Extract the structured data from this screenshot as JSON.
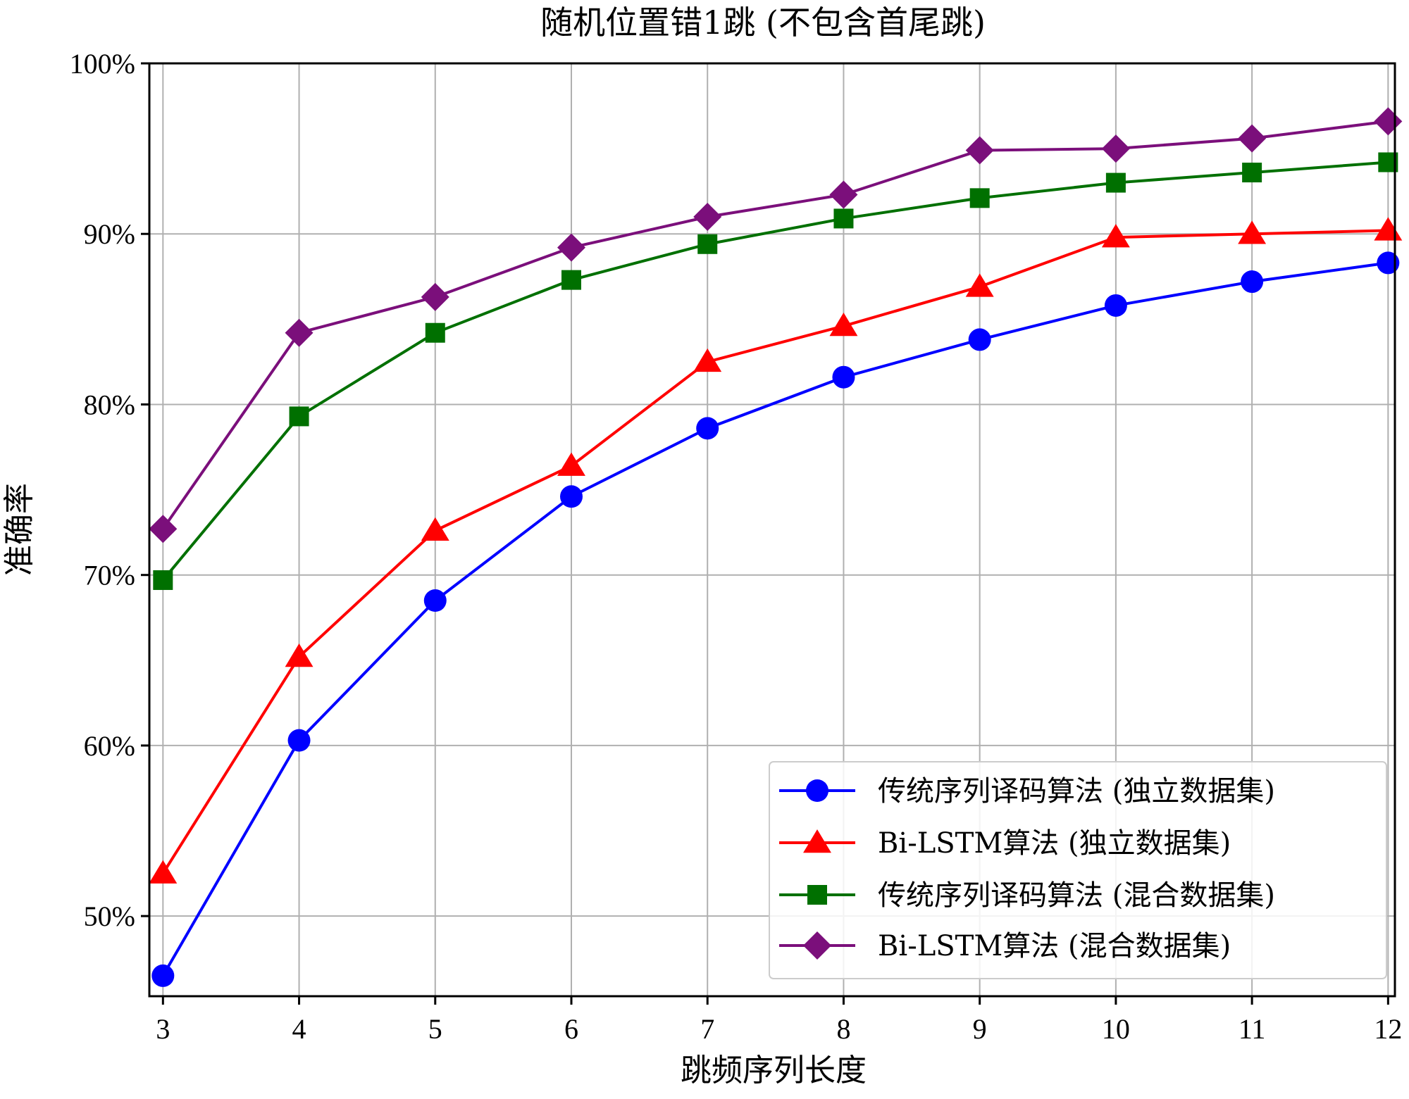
{
  "chart_data": {
    "type": "line",
    "title": "随机位置错1跳 (不包含首尾跳)",
    "xlabel": "跳频序列长度",
    "ylabel": "准确率",
    "x": [
      3,
      4,
      5,
      6,
      7,
      8,
      9,
      10,
      11,
      12
    ],
    "x_tick_labels": [
      "3",
      "4",
      "5",
      "6",
      "7",
      "8",
      "9",
      "10",
      "11",
      "12"
    ],
    "xlim": [
      2.9,
      12.05
    ],
    "ylim": [
      45.3,
      100
    ],
    "y_ticks": [
      50,
      60,
      70,
      80,
      90,
      100
    ],
    "y_tick_labels": [
      "50%",
      "60%",
      "70%",
      "80%",
      "90%",
      "100%"
    ],
    "grid": true,
    "legend_position": "lower-right",
    "series": [
      {
        "name": "传统序列译码算法 (独立数据集)",
        "color": "#0000ff",
        "marker": "circle",
        "values": [
          46.5,
          60.3,
          68.5,
          74.6,
          78.6,
          81.6,
          83.8,
          85.8,
          87.2,
          88.3
        ]
      },
      {
        "name": "Bi-LSTM算法 (独立数据集)",
        "color": "#ff0000",
        "marker": "triangle",
        "values": [
          52.5,
          65.2,
          72.6,
          76.4,
          82.5,
          84.6,
          86.9,
          89.8,
          90.0,
          90.2
        ]
      },
      {
        "name": "传统序列译码算法 (混合数据集)",
        "color": "#007000",
        "marker": "square",
        "values": [
          69.7,
          79.3,
          84.2,
          87.3,
          89.4,
          90.9,
          92.1,
          93.0,
          93.6,
          94.2
        ]
      },
      {
        "name": "Bi-LSTM算法 (混合数据集)",
        "color": "#7b0f7b",
        "marker": "diamond",
        "values": [
          72.7,
          84.2,
          86.3,
          89.2,
          91.0,
          92.3,
          94.9,
          95.0,
          95.6,
          96.6
        ]
      }
    ]
  }
}
